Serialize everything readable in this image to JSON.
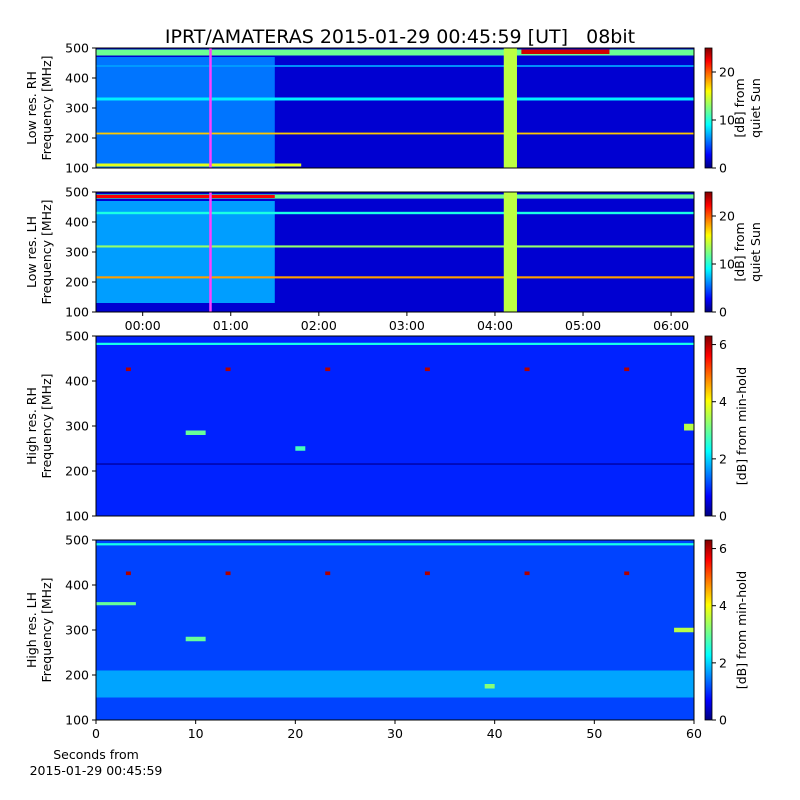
{
  "title": "IPRT/AMATERAS 2015-01-29 00:45:59 [UT]   08bit",
  "chart_data": [
    {
      "type": "spectrogram",
      "ylabel": [
        "Low res. RH",
        "Frequency [MHz]"
      ],
      "xlim": [
        -0.53,
        6.26
      ],
      "ylim": [
        100,
        500
      ],
      "yticks": [
        100,
        200,
        300,
        400,
        500
      ],
      "background": 2,
      "colorbar": {
        "label": [
          "[dB] from",
          "quiet Sun"
        ],
        "lim": [
          0,
          25
        ],
        "ticks": [
          0,
          10,
          20
        ]
      },
      "marker": {
        "x": 0.77,
        "color": "#ff40ff"
      },
      "regions": [
        {
          "t": [
            -0.53,
            1.5
          ],
          "f": [
            100,
            470
          ],
          "db": 6
        },
        {
          "t": [
            -0.53,
            6.26
          ],
          "f": [
            475,
            495
          ],
          "db": 12
        },
        {
          "t": [
            4.3,
            5.3
          ],
          "f": [
            480,
            495
          ],
          "db": 23
        },
        {
          "t": [
            -0.53,
            6.26
          ],
          "f": [
            212,
            218
          ],
          "db": 17
        },
        {
          "t": [
            -0.53,
            1.8
          ],
          "f": [
            105,
            115
          ],
          "db": 15
        },
        {
          "t": [
            -0.53,
            6.26
          ],
          "f": [
            325,
            335
          ],
          "db": 9
        },
        {
          "t": [
            -0.53,
            6.26
          ],
          "f": [
            437,
            443
          ],
          "db": 7
        },
        {
          "t": [
            4.1,
            4.25
          ],
          "f": [
            100,
            500
          ],
          "db": 14
        }
      ]
    },
    {
      "type": "spectrogram",
      "ylabel": [
        "Low res. LH",
        "Frequency [MHz]"
      ],
      "xlim": [
        -0.53,
        6.26
      ],
      "ylim": [
        100,
        500
      ],
      "yticks": [
        100,
        200,
        300,
        400,
        500
      ],
      "xticks": [
        {
          "value": 0,
          "label": "00:00"
        },
        {
          "value": 1,
          "label": "01:00"
        },
        {
          "value": 2,
          "label": "02:00"
        },
        {
          "value": 3,
          "label": "03:00"
        },
        {
          "value": 4,
          "label": "04:00"
        },
        {
          "value": 5,
          "label": "05:00"
        },
        {
          "value": 6,
          "label": "06:00"
        }
      ],
      "background": 2,
      "colorbar": {
        "label": [
          "[dB] from",
          "quiet Sun"
        ],
        "lim": [
          0,
          25
        ],
        "ticks": [
          0,
          10,
          20
        ]
      },
      "marker": {
        "x": 0.77,
        "color": "#ff40ff"
      },
      "regions": [
        {
          "t": [
            -0.53,
            1.5
          ],
          "f": [
            130,
            470
          ],
          "db": 7
        },
        {
          "t": [
            -0.53,
            6.26
          ],
          "f": [
            478,
            492
          ],
          "db": 12
        },
        {
          "t": [
            -0.53,
            1.5
          ],
          "f": [
            480,
            490
          ],
          "db": 22
        },
        {
          "t": [
            -0.53,
            6.26
          ],
          "f": [
            212,
            219
          ],
          "db": 18
        },
        {
          "t": [
            -0.53,
            6.26
          ],
          "f": [
            315,
            322
          ],
          "db": 13
        },
        {
          "t": [
            -0.53,
            6.26
          ],
          "f": [
            426,
            434
          ],
          "db": 10
        },
        {
          "t": [
            4.1,
            4.25
          ],
          "f": [
            100,
            500
          ],
          "db": 14
        }
      ]
    },
    {
      "type": "spectrogram",
      "ylabel": [
        "High res. RH",
        "Frequency [MHz]"
      ],
      "xlim": [
        0,
        60
      ],
      "ylim": [
        100,
        500
      ],
      "yticks": [
        100,
        200,
        300,
        400,
        500
      ],
      "background": 1,
      "colorbar": {
        "label": [
          "[dB] from min-hold"
        ],
        "lim": [
          0,
          6.3
        ],
        "ticks": [
          0,
          2,
          4,
          6
        ]
      },
      "regions": [
        {
          "t": [
            0,
            60
          ],
          "f": [
            480,
            485
          ],
          "db": 2.5
        },
        {
          "t": [
            0,
            60
          ],
          "f": [
            214,
            217
          ],
          "db": 0.2
        },
        {
          "t": [
            9,
            11
          ],
          "f": [
            280,
            290
          ],
          "db": 3
        },
        {
          "t": [
            59,
            60
          ],
          "f": [
            290,
            305
          ],
          "db": 3.5
        },
        {
          "t": [
            20,
            21
          ],
          "f": [
            245,
            255
          ],
          "db": 2.8
        },
        {
          "t": [
            3,
            3.5
          ],
          "f": [
            422,
            430
          ],
          "db": 6
        },
        {
          "t": [
            13,
            13.5
          ],
          "f": [
            422,
            430
          ],
          "db": 6
        },
        {
          "t": [
            23,
            23.5
          ],
          "f": [
            422,
            430
          ],
          "db": 6
        },
        {
          "t": [
            33,
            33.5
          ],
          "f": [
            422,
            430
          ],
          "db": 6
        },
        {
          "t": [
            43,
            43.5
          ],
          "f": [
            422,
            430
          ],
          "db": 6
        },
        {
          "t": [
            53,
            53.5
          ],
          "f": [
            422,
            430
          ],
          "db": 6
        }
      ]
    },
    {
      "type": "spectrogram",
      "ylabel": [
        "High res. LH",
        "Frequency [MHz]"
      ],
      "xlim": [
        0,
        60
      ],
      "ylim": [
        100,
        500
      ],
      "yticks": [
        100,
        200,
        300,
        400,
        500
      ],
      "xticks": [
        0,
        10,
        20,
        30,
        40,
        50,
        60
      ],
      "xlabel": [
        "Seconds from",
        "2015-01-29 00:45:59"
      ],
      "background": 1.2,
      "colorbar": {
        "label": [
          "[dB] from min-hold"
        ],
        "lim": [
          0,
          6.3
        ],
        "ticks": [
          0,
          2,
          4,
          6
        ]
      },
      "regions": [
        {
          "t": [
            0,
            60
          ],
          "f": [
            488,
            493
          ],
          "db": 2.5
        },
        {
          "t": [
            0,
            60
          ],
          "f": [
            150,
            210
          ],
          "db": 1.8
        },
        {
          "t": [
            0,
            4
          ],
          "f": [
            355,
            362
          ],
          "db": 3
        },
        {
          "t": [
            9,
            11
          ],
          "f": [
            275,
            285
          ],
          "db": 3
        },
        {
          "t": [
            58,
            60
          ],
          "f": [
            295,
            305
          ],
          "db": 3.5
        },
        {
          "t": [
            39,
            40
          ],
          "f": [
            170,
            180
          ],
          "db": 3.2
        },
        {
          "t": [
            3,
            3.5
          ],
          "f": [
            422,
            430
          ],
          "db": 6
        },
        {
          "t": [
            13,
            13.5
          ],
          "f": [
            422,
            430
          ],
          "db": 6
        },
        {
          "t": [
            23,
            23.5
          ],
          "f": [
            422,
            430
          ],
          "db": 6
        },
        {
          "t": [
            33,
            33.5
          ],
          "f": [
            422,
            430
          ],
          "db": 6
        },
        {
          "t": [
            43,
            43.5
          ],
          "f": [
            422,
            430
          ],
          "db": 6
        },
        {
          "t": [
            53,
            53.5
          ],
          "f": [
            422,
            430
          ],
          "db": 6
        }
      ]
    }
  ]
}
